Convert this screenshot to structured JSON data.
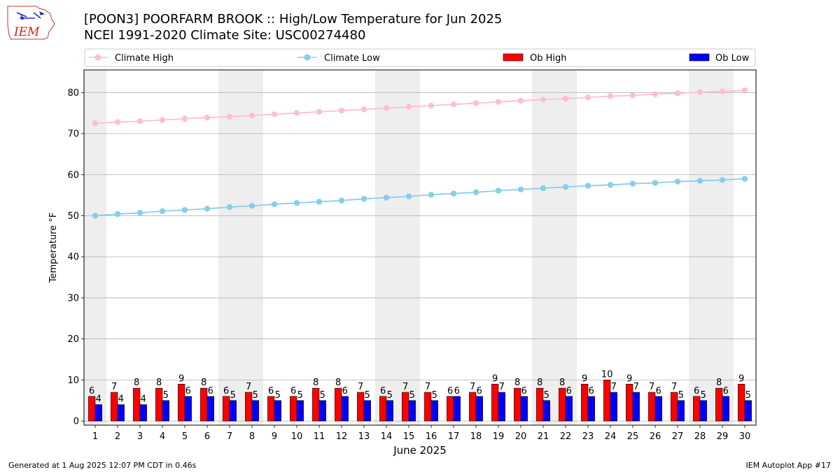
{
  "title_line1": "[POON3] POORFARM  BROOK :: High/Low Temperature for Jun 2025",
  "title_line2": "NCEI 1991-2020 Climate Site: USC00274480",
  "logo_text": "IEM",
  "footer_left": "Generated at 1 Aug 2025 12:07 PM CDT in 0.46s",
  "footer_right": "IEM Autoplot App #17",
  "colors": {
    "climate_high": "#ffc0cb",
    "climate_low": "#87ceeb",
    "ob_high": "#ff0000",
    "ob_low": "#0000ff",
    "weekend_shade": "#eeeeee",
    "grid": "#b0b0b0"
  },
  "chart_data": {
    "type": "bar",
    "xlabel": "June 2025",
    "ylabel": "Temperature °F",
    "ylim": [
      -1,
      85.5
    ],
    "yticks": [
      0,
      10,
      20,
      30,
      40,
      50,
      60,
      70,
      80
    ],
    "grid": "horizontal",
    "legend_position": "top",
    "x": [
      1,
      2,
      3,
      4,
      5,
      6,
      7,
      8,
      9,
      10,
      11,
      12,
      13,
      14,
      15,
      16,
      17,
      18,
      19,
      20,
      21,
      22,
      23,
      24,
      25,
      26,
      27,
      28,
      29,
      30
    ],
    "shaded_days": [
      1,
      7,
      8,
      14,
      15,
      21,
      22,
      28,
      29
    ],
    "series": [
      {
        "name": "Climate High",
        "kind": "line",
        "values": [
          72.5,
          72.8,
          73.0,
          73.3,
          73.6,
          73.9,
          74.1,
          74.4,
          74.7,
          75.0,
          75.3,
          75.6,
          75.9,
          76.2,
          76.5,
          76.8,
          77.1,
          77.4,
          77.7,
          78.0,
          78.3,
          78.5,
          78.8,
          79.1,
          79.3,
          79.6,
          79.8,
          80.1,
          80.3,
          80.5
        ]
      },
      {
        "name": "Climate Low",
        "kind": "line",
        "values": [
          50.0,
          50.4,
          50.7,
          51.1,
          51.4,
          51.7,
          52.1,
          52.4,
          52.8,
          53.1,
          53.4,
          53.7,
          54.1,
          54.4,
          54.7,
          55.1,
          55.4,
          55.7,
          56.1,
          56.4,
          56.7,
          57.0,
          57.3,
          57.5,
          57.8,
          58.0,
          58.3,
          58.5,
          58.7,
          59.0
        ]
      },
      {
        "name": "Ob High",
        "kind": "bar",
        "values": [
          6,
          7,
          8,
          8,
          9,
          8,
          6,
          7,
          6,
          6,
          8,
          8,
          7,
          6,
          7,
          7,
          6,
          7,
          9,
          8,
          8,
          8,
          9,
          10,
          9,
          7,
          7,
          6,
          8,
          9
        ]
      },
      {
        "name": "Ob Low",
        "kind": "bar",
        "values": [
          4,
          4,
          4,
          5,
          6,
          6,
          5,
          5,
          5,
          5,
          5,
          6,
          5,
          5,
          5,
          5,
          6,
          6,
          7,
          6,
          5,
          6,
          6,
          7,
          7,
          6,
          5,
          5,
          6,
          5
        ]
      }
    ]
  }
}
